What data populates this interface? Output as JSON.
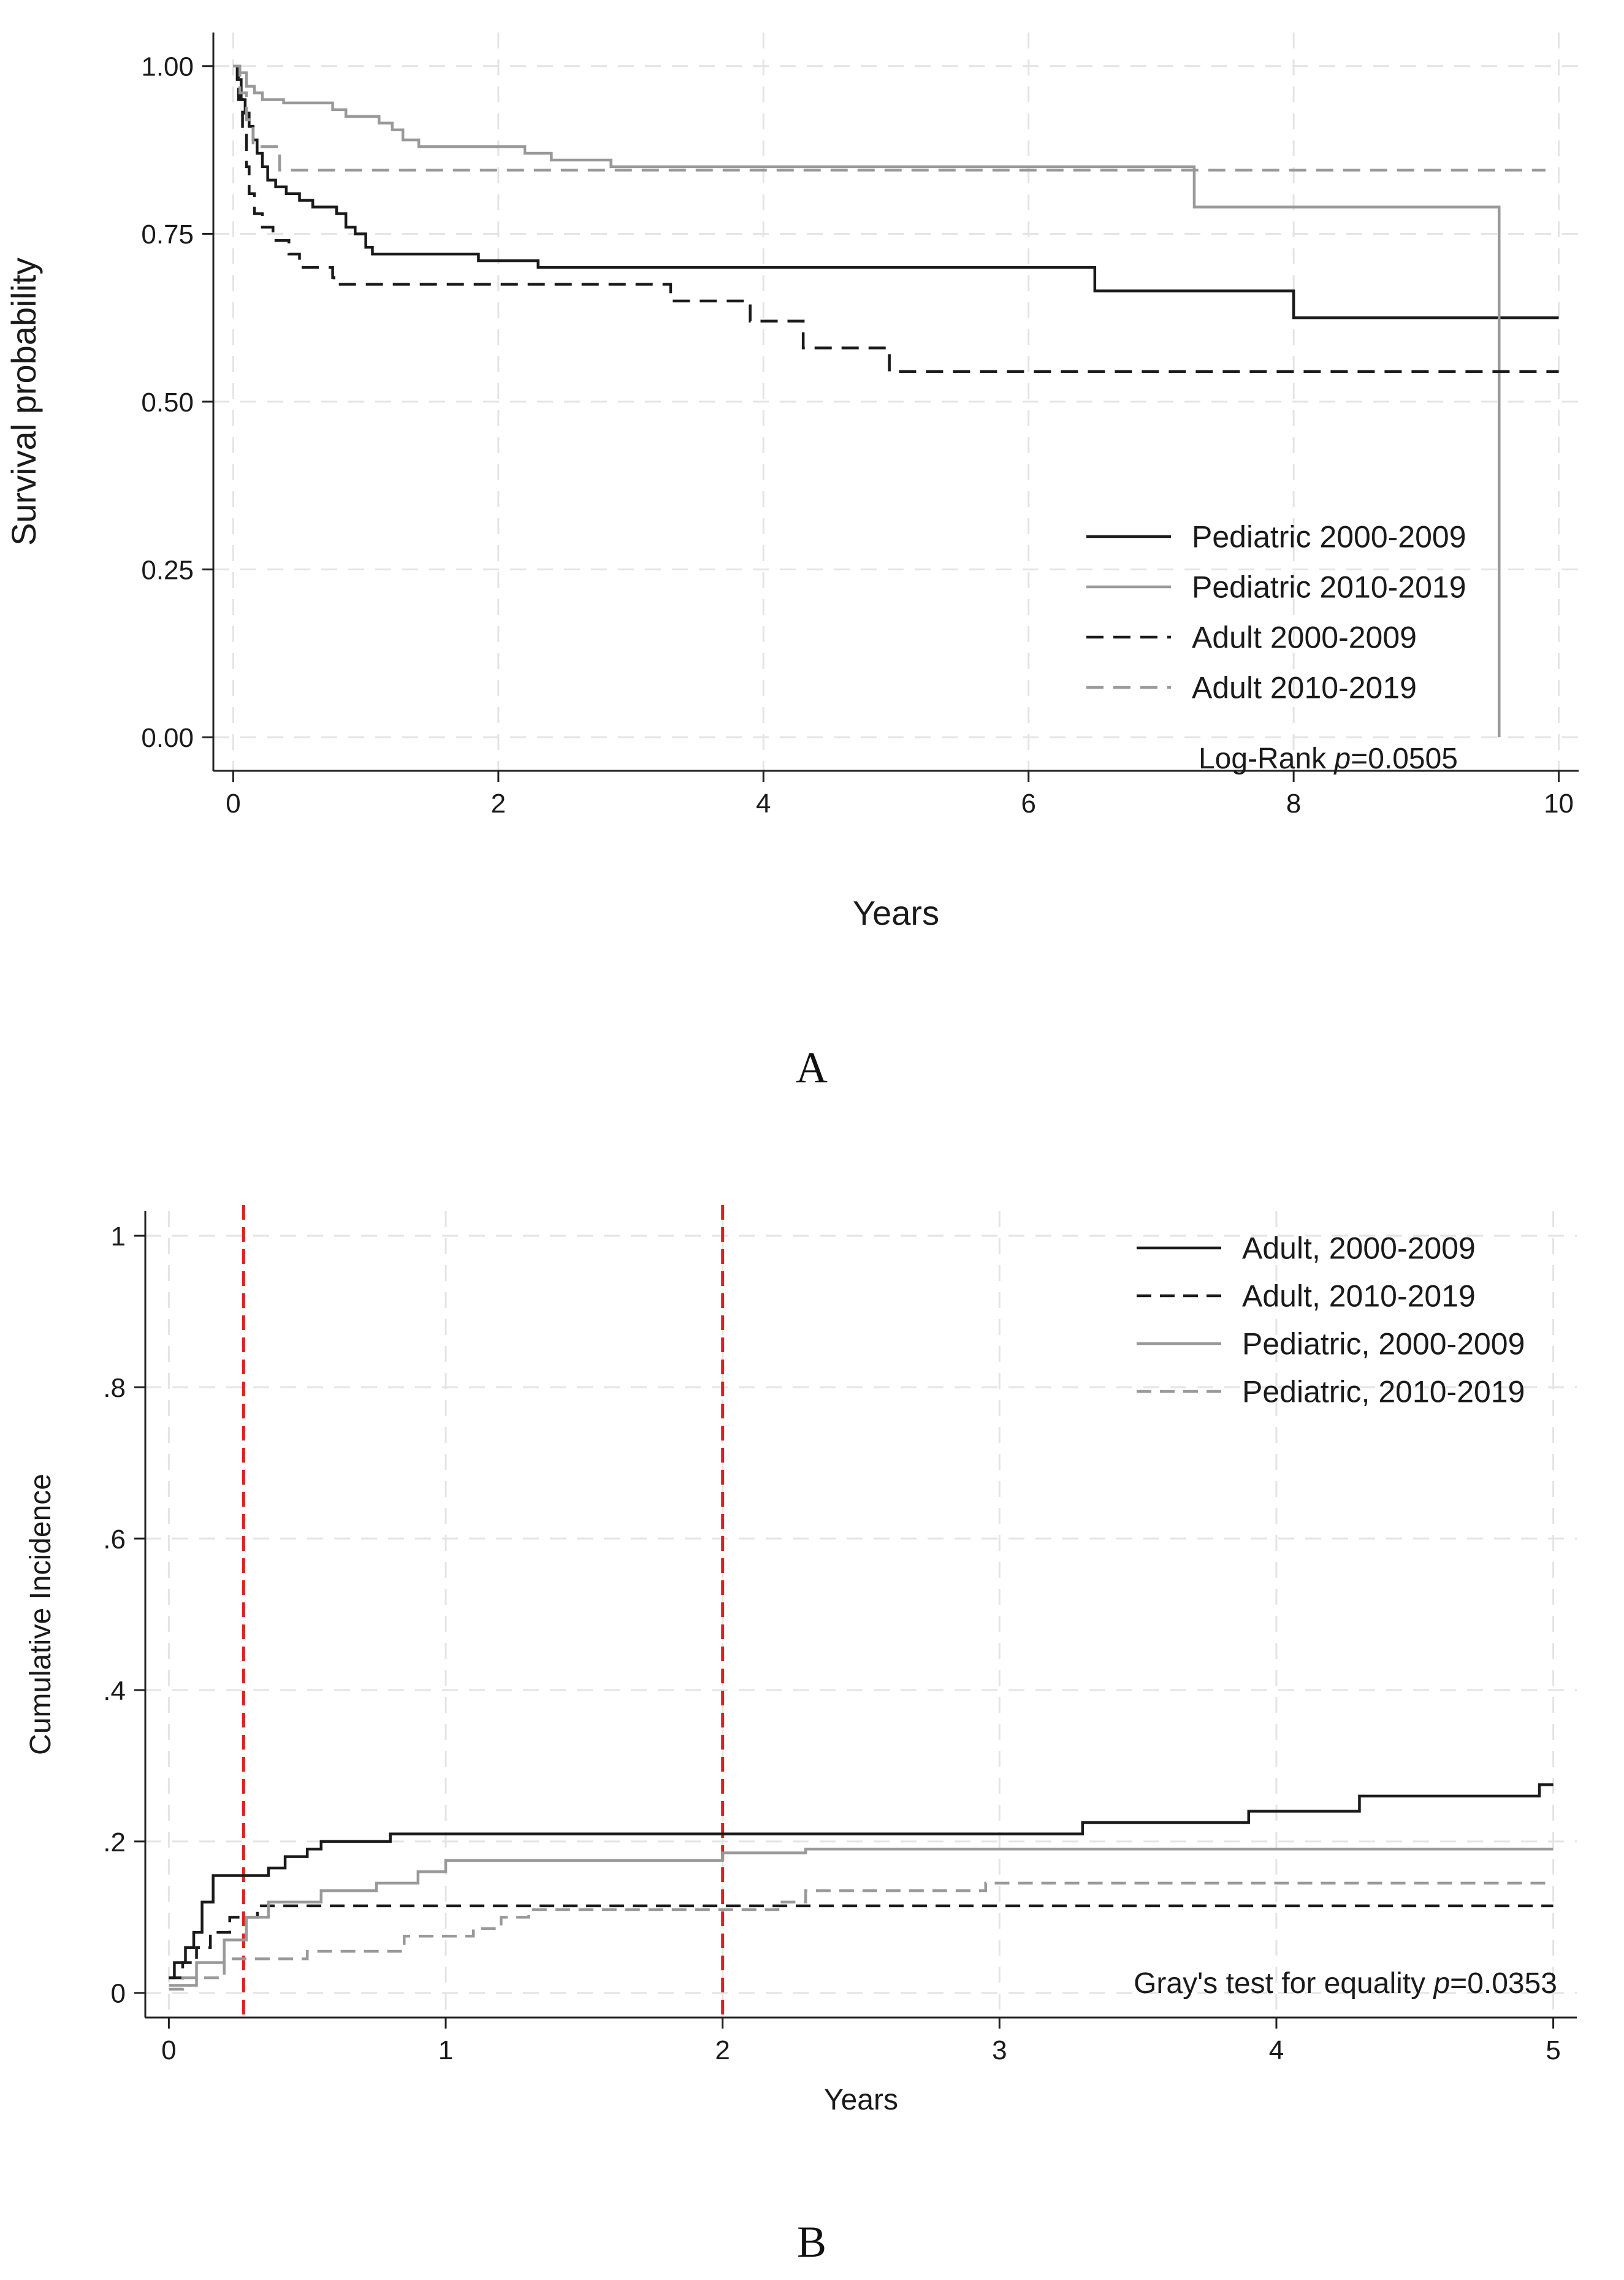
{
  "chart_data": [
    {
      "id": "A",
      "panel_label": "A",
      "type": "line",
      "subtype": "kaplan-meier survival step curves",
      "xlabel": "Years",
      "ylabel": "Survival probability",
      "xlim": [
        0,
        10
      ],
      "ylim": [
        0,
        1
      ],
      "xticks": [
        0,
        2,
        4,
        6,
        8,
        10
      ],
      "xtick_labels": [
        "0",
        "2",
        "4",
        "6",
        "8",
        "10"
      ],
      "yticks": [
        0,
        0.25,
        0.5,
        0.75,
        1
      ],
      "ytick_labels": [
        "0.00",
        "0.25",
        "0.50",
        "0.75",
        "1.00"
      ],
      "grid": true,
      "legend_position": "bottom-right",
      "annotation": {
        "prefix": "Log-Rank ",
        "italic": "p",
        "suffix": "=0.0505"
      },
      "series": [
        {
          "name": "Pediatric 2000-2009",
          "color": "#1a1a1a",
          "dash": "solid",
          "points": [
            [
              0,
              1
            ],
            [
              0.03,
              0.98
            ],
            [
              0.06,
              0.95
            ],
            [
              0.09,
              0.93
            ],
            [
              0.12,
              0.91
            ],
            [
              0.15,
              0.89
            ],
            [
              0.18,
              0.87
            ],
            [
              0.22,
              0.85
            ],
            [
              0.26,
              0.83
            ],
            [
              0.32,
              0.82
            ],
            [
              0.4,
              0.81
            ],
            [
              0.5,
              0.8
            ],
            [
              0.6,
              0.79
            ],
            [
              0.78,
              0.78
            ],
            [
              0.85,
              0.76
            ],
            [
              0.92,
              0.75
            ],
            [
              1.0,
              0.73
            ],
            [
              1.05,
              0.72
            ],
            [
              1.85,
              0.71
            ],
            [
              2.3,
              0.7
            ],
            [
              6.5,
              0.665
            ],
            [
              8.0,
              0.625
            ],
            [
              10.0,
              0.625
            ]
          ]
        },
        {
          "name": "Pediatric 2010-2019",
          "color": "#999999",
          "dash": "solid",
          "points": [
            [
              0,
              1
            ],
            [
              0.04,
              0.99
            ],
            [
              0.1,
              0.97
            ],
            [
              0.16,
              0.96
            ],
            [
              0.22,
              0.95
            ],
            [
              0.38,
              0.945
            ],
            [
              0.75,
              0.935
            ],
            [
              0.85,
              0.925
            ],
            [
              1.1,
              0.915
            ],
            [
              1.2,
              0.905
            ],
            [
              1.28,
              0.89
            ],
            [
              1.4,
              0.88
            ],
            [
              2.2,
              0.87
            ],
            [
              2.4,
              0.86
            ],
            [
              2.85,
              0.85
            ],
            [
              7.25,
              0.79
            ],
            [
              9.55,
              0.0
            ]
          ]
        },
        {
          "name": "Adult 2000-2009",
          "color": "#1a1a1a",
          "dash": "28 16",
          "points": [
            [
              0,
              1
            ],
            [
              0.04,
              0.95
            ],
            [
              0.07,
              0.9
            ],
            [
              0.1,
              0.85
            ],
            [
              0.12,
              0.81
            ],
            [
              0.16,
              0.78
            ],
            [
              0.22,
              0.76
            ],
            [
              0.3,
              0.74
            ],
            [
              0.42,
              0.72
            ],
            [
              0.5,
              0.7
            ],
            [
              0.75,
              0.685
            ],
            [
              0.76,
              0.675
            ],
            [
              3.3,
              0.65
            ],
            [
              3.9,
              0.62
            ],
            [
              4.3,
              0.58
            ],
            [
              4.95,
              0.545
            ],
            [
              10.0,
              0.545
            ]
          ]
        },
        {
          "name": "Adult 2010-2019",
          "color": "#999999",
          "dash": "28 16",
          "points": [
            [
              0,
              1
            ],
            [
              0.05,
              0.96
            ],
            [
              0.1,
              0.92
            ],
            [
              0.15,
              0.88
            ],
            [
              0.35,
              0.845
            ],
            [
              9.9,
              0.845
            ]
          ]
        }
      ]
    },
    {
      "id": "B",
      "panel_label": "B",
      "type": "line",
      "subtype": "cumulative incidence step curves",
      "xlabel": "Years",
      "ylabel": "Cumulative Incidence",
      "xlim": [
        0,
        5
      ],
      "ylim": [
        0,
        1
      ],
      "xticks": [
        0,
        1,
        2,
        3,
        4,
        5
      ],
      "xtick_labels": [
        "0",
        "1",
        "2",
        "3",
        "4",
        "5"
      ],
      "yticks": [
        0,
        0.2,
        0.4,
        0.6,
        0.8,
        1
      ],
      "ytick_labels": [
        "0",
        ".2",
        ".4",
        ".6",
        ".8",
        "1"
      ],
      "grid": true,
      "legend_position": "top-right",
      "reference_lines": [
        {
          "x": 0.27,
          "color": "#e02020"
        },
        {
          "x": 2.0,
          "color": "#e02020"
        }
      ],
      "annotation": {
        "prefix": "Gray's test for equality ",
        "italic": "p",
        "suffix": "=0.0353"
      },
      "series": [
        {
          "name": "Adult, 2000-2009",
          "color": "#1a1a1a",
          "dash": "solid",
          "points": [
            [
              0,
              0.02
            ],
            [
              0.02,
              0.04
            ],
            [
              0.06,
              0.06
            ],
            [
              0.09,
              0.08
            ],
            [
              0.12,
              0.12
            ],
            [
              0.16,
              0.155
            ],
            [
              0.36,
              0.165
            ],
            [
              0.42,
              0.18
            ],
            [
              0.5,
              0.19
            ],
            [
              0.55,
              0.2
            ],
            [
              0.8,
              0.21
            ],
            [
              3.3,
              0.225
            ],
            [
              3.9,
              0.24
            ],
            [
              4.3,
              0.26
            ],
            [
              4.95,
              0.275
            ],
            [
              5.0,
              0.275
            ]
          ]
        },
        {
          "name": "Adult, 2010-2019",
          "color": "#1a1a1a",
          "dash": "24 14",
          "points": [
            [
              0,
              0.02
            ],
            [
              0.05,
              0.04
            ],
            [
              0.1,
              0.06
            ],
            [
              0.15,
              0.08
            ],
            [
              0.22,
              0.1
            ],
            [
              0.32,
              0.115
            ],
            [
              5.0,
              0.115
            ]
          ]
        },
        {
          "name": "Pediatric, 2000-2009",
          "color": "#999999",
          "dash": "solid",
          "points": [
            [
              0,
              0.01
            ],
            [
              0.1,
              0.04
            ],
            [
              0.2,
              0.07
            ],
            [
              0.28,
              0.1
            ],
            [
              0.36,
              0.12
            ],
            [
              0.55,
              0.135
            ],
            [
              0.75,
              0.145
            ],
            [
              0.9,
              0.16
            ],
            [
              1.0,
              0.175
            ],
            [
              2.0,
              0.185
            ],
            [
              2.3,
              0.19
            ],
            [
              5.0,
              0.19
            ]
          ]
        },
        {
          "name": "Pediatric, 2010-2019",
          "color": "#999999",
          "dash": "24 14",
          "points": [
            [
              0,
              0.005
            ],
            [
              0.05,
              0.02
            ],
            [
              0.2,
              0.045
            ],
            [
              0.5,
              0.055
            ],
            [
              0.85,
              0.075
            ],
            [
              1.1,
              0.085
            ],
            [
              1.2,
              0.1
            ],
            [
              1.3,
              0.11
            ],
            [
              2.2,
              0.12
            ],
            [
              2.3,
              0.135
            ],
            [
              2.95,
              0.145
            ],
            [
              5.0,
              0.145
            ]
          ]
        }
      ]
    }
  ]
}
